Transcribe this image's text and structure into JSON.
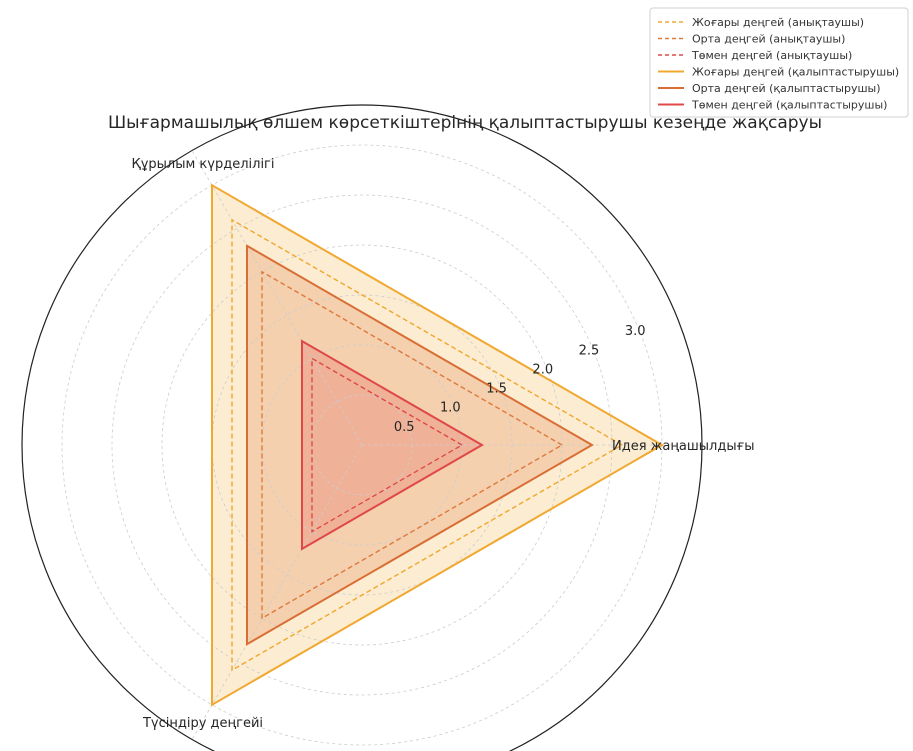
{
  "chart_data": {
    "type": "radar",
    "title": "Шығармашылық өлшем көрсеткіштерінің қалыптастырушы кезеңде жақсаруы",
    "axes": [
      "Идея жаңашылдығы",
      "Құрылым күрделілігі",
      "Түсіндіру деңгейі"
    ],
    "rlim": [
      0,
      3.4
    ],
    "rticks": [
      0.5,
      1.0,
      1.5,
      2.0,
      2.5,
      3.0
    ],
    "rtick_labels": [
      "0.5",
      "1.0",
      "1.5",
      "2.0",
      "2.5",
      "3.0"
    ],
    "grid": true,
    "legend_position": "top-right",
    "series": [
      {
        "name": "Жоғары деңгей (анықтаушы)",
        "values": [
          2.6,
          2.6,
          2.6
        ],
        "color": "#f0a830",
        "style": "dashed",
        "fill": false
      },
      {
        "name": "Орта деңгей (анықтаушы)",
        "values": [
          2.0,
          2.0,
          2.0
        ],
        "color": "#e07a3c",
        "style": "dashed",
        "fill": false
      },
      {
        "name": "Төмен деңгей (анықтаушы)",
        "values": [
          1.0,
          1.0,
          1.0
        ],
        "color": "#e04848",
        "style": "dashed",
        "fill": false
      },
      {
        "name": "Жоғары деңгей (қалыптастырушы)",
        "values": [
          3.0,
          3.0,
          3.0
        ],
        "color": "#f0a830",
        "style": "solid",
        "fill": true
      },
      {
        "name": "Орта деңгей (қалыптастырушы)",
        "values": [
          2.3,
          2.3,
          2.3
        ],
        "color": "#d96e34",
        "style": "solid",
        "fill": true
      },
      {
        "name": "Төмен деңгей (қалыптастырушы)",
        "values": [
          1.2,
          1.2,
          1.2
        ],
        "color": "#e04848",
        "style": "solid",
        "fill": true
      }
    ]
  }
}
